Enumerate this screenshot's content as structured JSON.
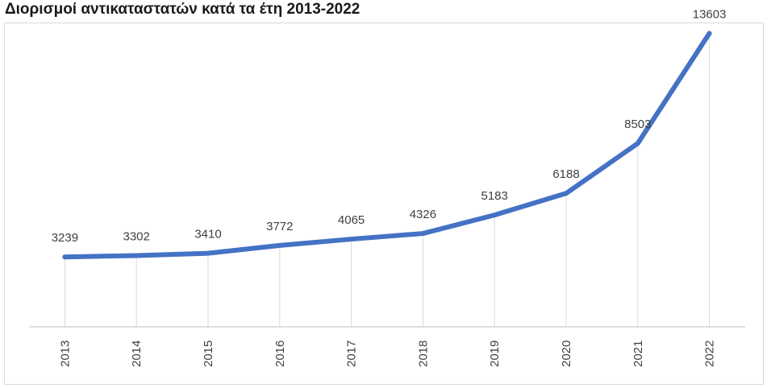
{
  "title": "Διορισμοί αντικαταστατών κατά τα έτη 2013-2022",
  "colors": {
    "line": "#4472C4",
    "grid": "#d9d9d9",
    "axis": "#bfbfbf",
    "text": "#404040"
  },
  "chart_data": {
    "type": "line",
    "title": "Διορισμοί αντικαταστατών κατά τα έτη 2013-2022",
    "categories": [
      "2013",
      "2014",
      "2015",
      "2016",
      "2017",
      "2018",
      "2019",
      "2020",
      "2021",
      "2022"
    ],
    "series": [
      {
        "values": [
          3239,
          3302,
          3410,
          3772,
          4065,
          4326,
          5183,
          6188,
          8503,
          13603
        ]
      }
    ],
    "data_labels": [
      "3239",
      "3302",
      "3410",
      "3772",
      "4065",
      "4326",
      "5183",
      "6188",
      "8503",
      "13603"
    ],
    "xlabel": "",
    "ylabel": "",
    "ylim": [
      0,
      15000
    ],
    "grid": "vertical",
    "legend": "none",
    "x_tick_rotation": "vertical"
  }
}
